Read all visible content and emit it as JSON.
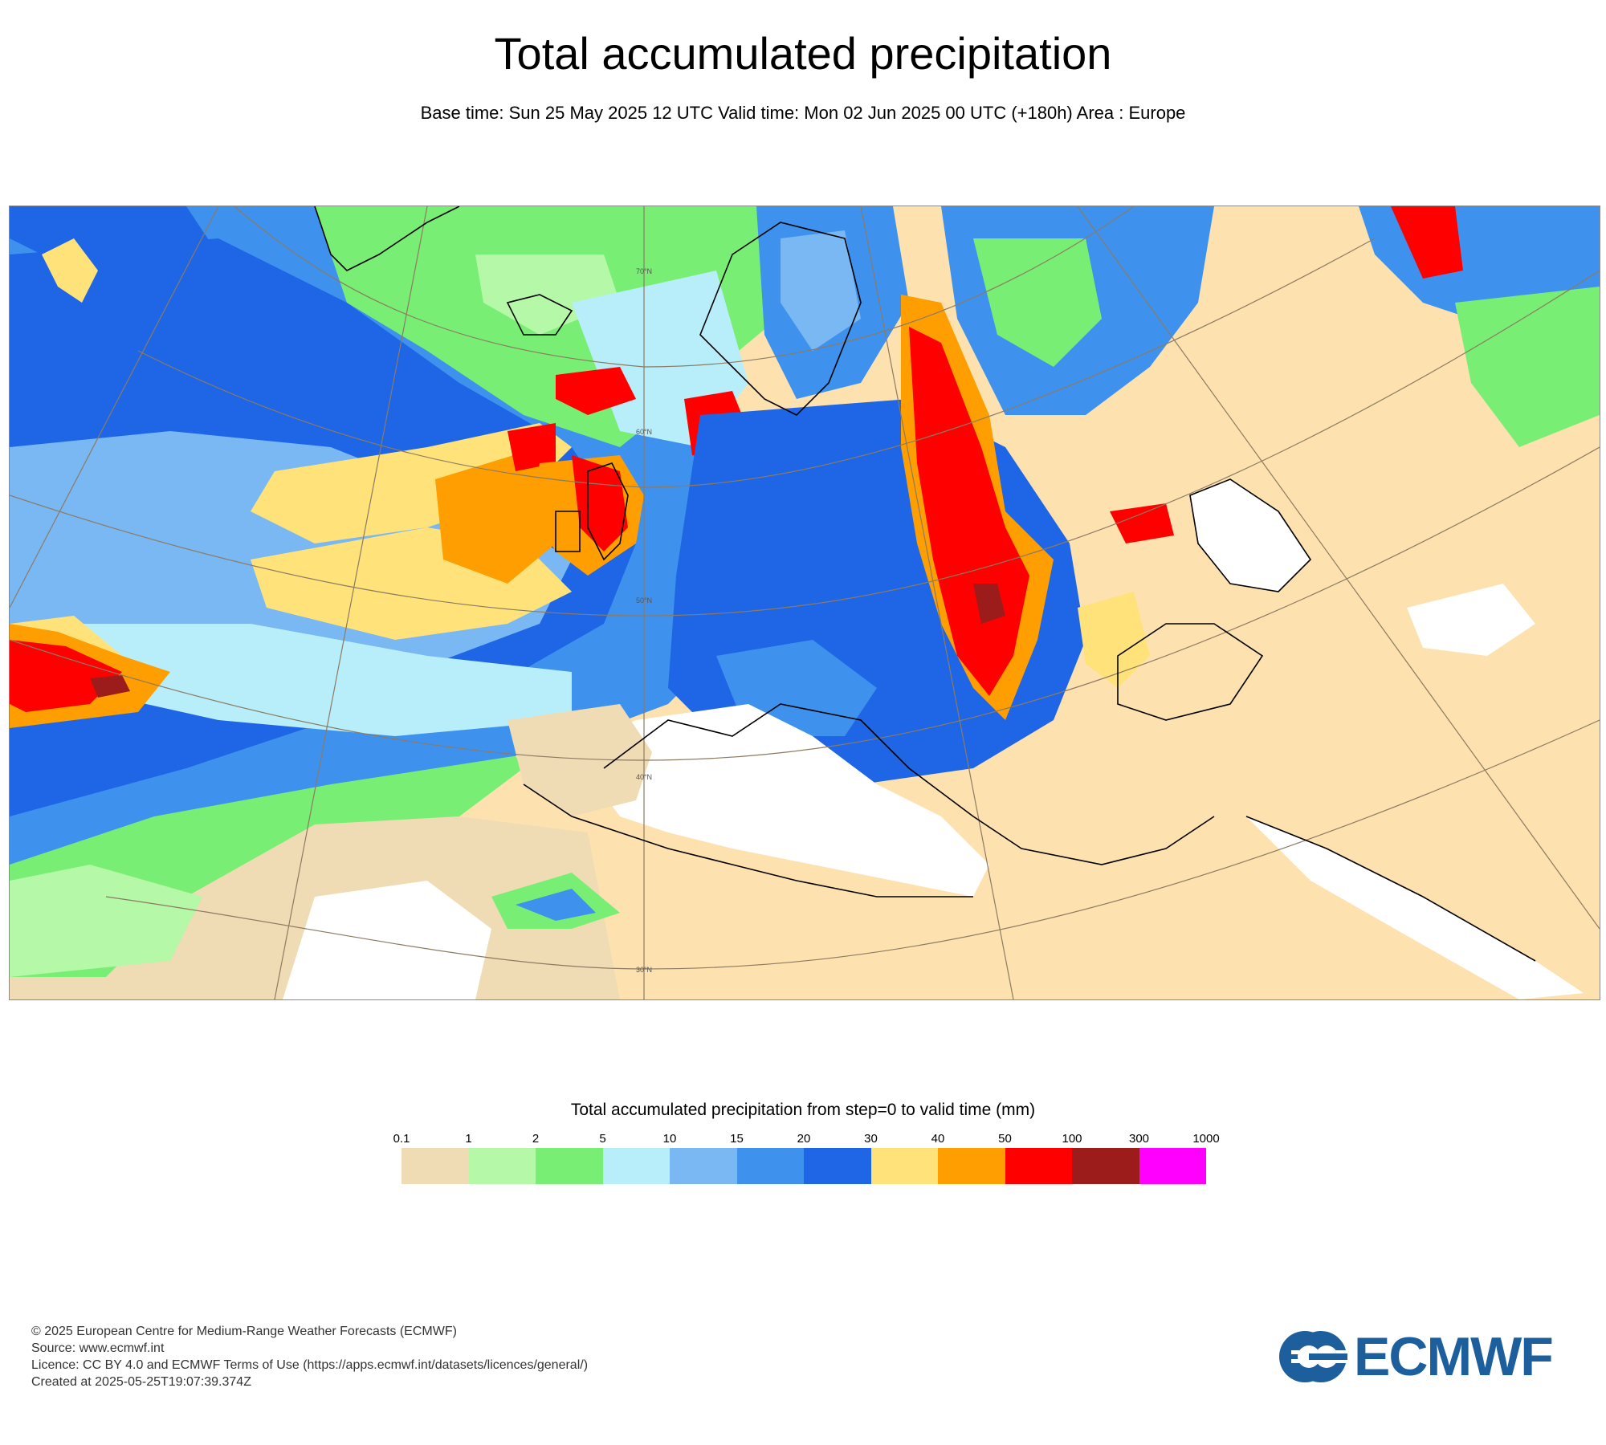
{
  "title": "Total accumulated precipitation",
  "subtitle": "Base time: Sun 25 May 2025 12 UTC Valid time: Mon 02 Jun 2025 00 UTC (+180h) Area : Europe",
  "map": {
    "area": "Europe",
    "latitude_labels": [
      "70°N",
      "60°N",
      "50°N",
      "40°N",
      "30°N"
    ],
    "colors": {
      "sea_no_precip": "#ffffff",
      "land_no_precip": "#fde2b0",
      "coastline": "#000000",
      "graticule": "#8c7a62",
      "contour": "#6f6fe0"
    }
  },
  "legend": {
    "title": "Total accumulated precipitation from step=0 to valid time (mm)",
    "ticks": [
      "0.1",
      "1",
      "2",
      "5",
      "10",
      "15",
      "20",
      "30",
      "40",
      "50",
      "100",
      "300",
      "1000"
    ],
    "colors": [
      "#f0dcb4",
      "#b4f8a8",
      "#78ee74",
      "#b8eefa",
      "#7ab8f4",
      "#3e92ee",
      "#1e66e6",
      "#ffe37a",
      "#ff9e00",
      "#ff0000",
      "#9c1c1c",
      "#ff00ff"
    ]
  },
  "footer": {
    "line1": "© 2025 European Centre for Medium-Range Weather Forecasts (ECMWF)",
    "line2": "Source: www.ecmwf.int",
    "line3": "Licence: CC BY 4.0 and ECMWF Terms of Use (https://apps.ecmwf.int/datasets/licences/general/)",
    "line4": "Created at 2025-05-25T19:07:39.374Z"
  },
  "logo": {
    "text": "ECMWF",
    "color": "#1c5f9c"
  }
}
